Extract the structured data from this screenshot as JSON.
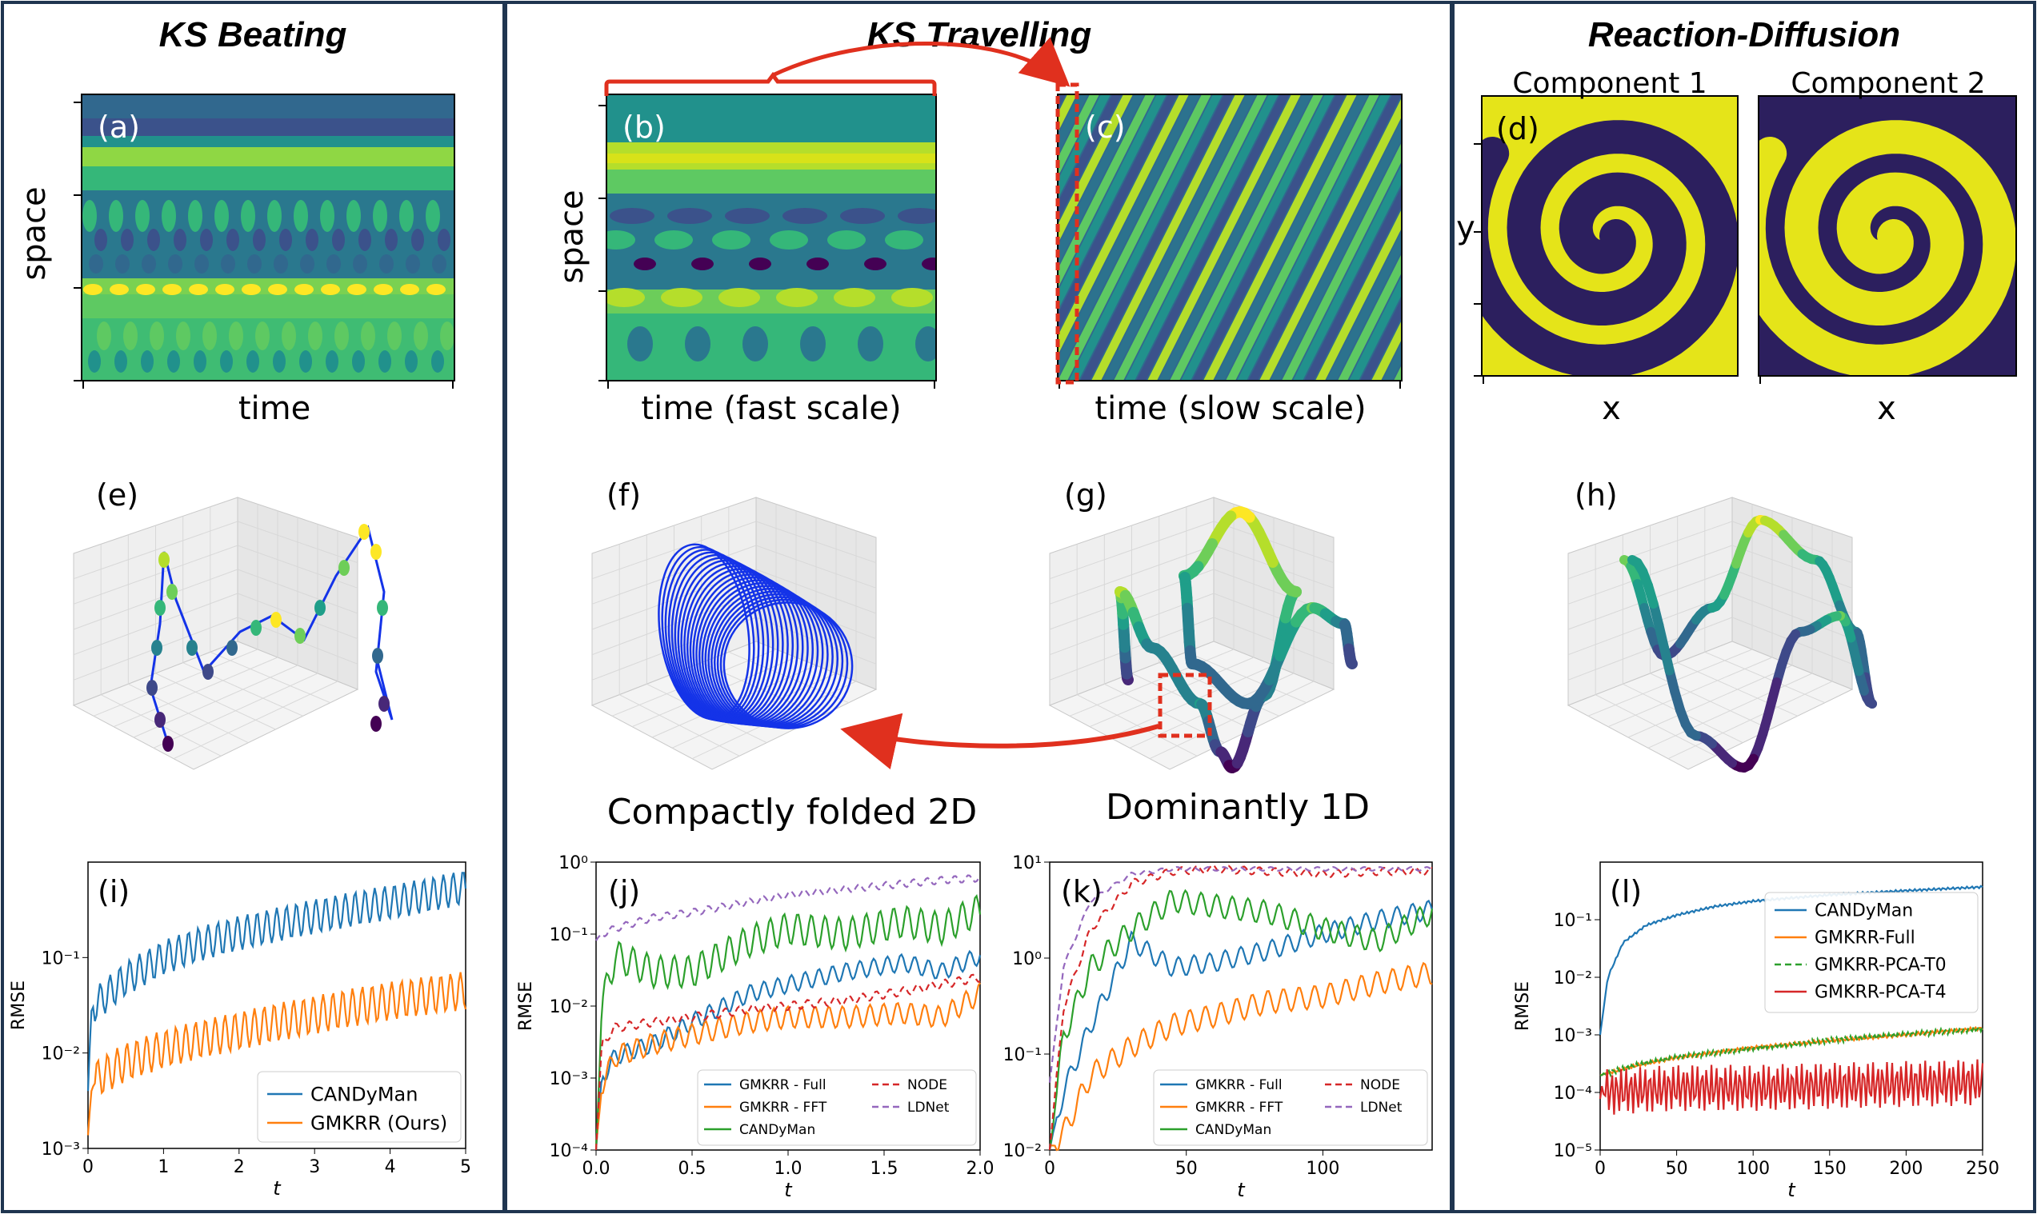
{
  "columns": {
    "col1": {
      "title": "KS Beating"
    },
    "col2": {
      "title": "KS Travelling"
    },
    "col3": {
      "title": "Reaction-Diffusion"
    }
  },
  "panels": {
    "a": {
      "tag": "(a)",
      "ylabel": "space",
      "xlabel": "time"
    },
    "b": {
      "tag": "(b)",
      "ylabel": "space",
      "xlabel": "time (fast scale)"
    },
    "c": {
      "tag": "(c)",
      "xlabel": "time (slow scale)"
    },
    "d": {
      "tag": "(d)",
      "ylabel": "y",
      "title1": "Component 1",
      "title2": "Component 2",
      "xlabel1": "x",
      "xlabel2": "x"
    },
    "e": {
      "tag": "(e)"
    },
    "f": {
      "tag": "(f)",
      "caption": "Compactly folded 2D"
    },
    "g": {
      "tag": "(g)",
      "caption": "Dominantly 1D"
    },
    "h": {
      "tag": "(h)"
    },
    "i": {
      "tag": "(i)"
    },
    "j": {
      "tag": "(j)"
    },
    "k": {
      "tag": "(k)"
    },
    "l": {
      "tag": "(l)"
    }
  },
  "colors": {
    "blue": "#1f77b4",
    "orange": "#ff7f0e",
    "green": "#2ca02c",
    "red": "#d62728",
    "purple": "#9467bd",
    "frame": "#1f3550",
    "annot": "#e0301e",
    "loop": "#1433e8"
  },
  "chart_data": [
    {
      "panel": "i",
      "type": "line",
      "scale": "log",
      "xlabel": "t",
      "ylabel": "RMSE",
      "xlim": [
        0,
        5
      ],
      "ylim": [
        0.001,
        1
      ],
      "xticks": [
        "0",
        "1",
        "2",
        "3",
        "4",
        "5"
      ],
      "yticks": [
        "10⁻³",
        "10⁻²",
        "10⁻¹"
      ],
      "legend": "lower-right",
      "series": [
        {
          "name": "CANDyMan",
          "x": [
            0,
            0.05,
            0.5,
            1,
            1.5,
            2,
            2.5,
            3,
            3.5,
            4,
            4.5,
            5
          ],
          "y": [
            0.004,
            0.03,
            0.06,
            0.1,
            0.14,
            0.18,
            0.22,
            0.27,
            0.32,
            0.38,
            0.45,
            0.55
          ]
        },
        {
          "name": "GMKRR (Ours)",
          "x": [
            0,
            0.05,
            0.5,
            1,
            1.5,
            2,
            2.5,
            3,
            3.5,
            4,
            4.5,
            5
          ],
          "y": [
            0.0012,
            0.005,
            0.008,
            0.011,
            0.014,
            0.017,
            0.021,
            0.025,
            0.03,
            0.035,
            0.04,
            0.045
          ]
        }
      ]
    },
    {
      "panel": "j",
      "type": "line",
      "scale": "log",
      "xlabel": "t",
      "ylabel": "RMSE",
      "xlim": [
        0,
        2
      ],
      "ylim": [
        0.0001,
        1
      ],
      "xticks": [
        "0.0",
        "0.5",
        "1.0",
        "1.5",
        "2.0"
      ],
      "yticks": [
        "10⁻⁴",
        "10⁻³",
        "10⁻²",
        "10⁻¹",
        "10⁰"
      ],
      "legend": "lower-right",
      "series": [
        {
          "name": "GMKRR - Full",
          "x": [
            0,
            0.03,
            0.1,
            0.3,
            0.5,
            0.8,
            1.0,
            1.3,
            1.6,
            1.8,
            2.0
          ],
          "y": [
            0.0001,
            0.001,
            0.002,
            0.003,
            0.006,
            0.015,
            0.02,
            0.03,
            0.04,
            0.03,
            0.05
          ]
        },
        {
          "name": "GMKRR - FFT",
          "x": [
            0,
            0.03,
            0.1,
            0.3,
            0.5,
            0.8,
            1.0,
            1.3,
            1.6,
            1.8,
            2.0
          ],
          "y": [
            0.0001,
            0.0008,
            0.002,
            0.003,
            0.004,
            0.006,
            0.007,
            0.007,
            0.008,
            0.007,
            0.015
          ]
        },
        {
          "name": "CANDyMan",
          "x": [
            0,
            0.03,
            0.1,
            0.3,
            0.5,
            0.8,
            1.0,
            1.3,
            1.6,
            1.8,
            2.0
          ],
          "y": [
            0.0001,
            0.01,
            0.05,
            0.03,
            0.03,
            0.08,
            0.12,
            0.1,
            0.15,
            0.12,
            0.22
          ]
        },
        {
          "name": "NODE",
          "x": [
            0,
            0.03,
            0.1,
            0.3,
            0.5,
            0.8,
            1.0,
            1.3,
            1.6,
            1.8,
            2.0
          ],
          "y": [
            0.0001,
            0.003,
            0.005,
            0.006,
            0.007,
            0.009,
            0.01,
            0.012,
            0.016,
            0.02,
            0.025
          ]
        },
        {
          "name": "LDNet",
          "x": [
            0,
            0.03,
            0.1,
            0.3,
            0.5,
            0.8,
            1.0,
            1.3,
            1.6,
            1.8,
            2.0
          ],
          "y": [
            0.08,
            0.1,
            0.12,
            0.17,
            0.2,
            0.28,
            0.35,
            0.42,
            0.5,
            0.56,
            0.6
          ]
        }
      ]
    },
    {
      "panel": "k",
      "type": "line",
      "scale": "log",
      "xlabel": "t",
      "ylabel": "",
      "xlim": [
        0,
        140
      ],
      "ylim": [
        0.01,
        10
      ],
      "xticks": [
        "0",
        "50",
        "100"
      ],
      "yticks": [
        "10⁻²",
        "10⁻¹",
        "10⁰",
        "10¹"
      ],
      "legend": "lower-right",
      "series": [
        {
          "name": "GMKRR - Full",
          "x": [
            0,
            5,
            15,
            30,
            45,
            60,
            80,
            100,
            120,
            140
          ],
          "y": [
            0.01,
            0.04,
            0.2,
            1.5,
            0.8,
            0.9,
            1.2,
            1.8,
            2.5,
            3.2
          ]
        },
        {
          "name": "GMKRR - FFT",
          "x": [
            0,
            5,
            15,
            30,
            45,
            60,
            80,
            100,
            120,
            140
          ],
          "y": [
            0.01,
            0.015,
            0.06,
            0.12,
            0.2,
            0.25,
            0.35,
            0.4,
            0.55,
            0.7
          ]
        },
        {
          "name": "CANDyMan",
          "x": [
            0,
            5,
            15,
            30,
            45,
            60,
            80,
            100,
            120,
            140
          ],
          "y": [
            0.01,
            0.15,
            0.8,
            2.0,
            4.0,
            3.5,
            3.0,
            2.0,
            1.5,
            3.0
          ]
        },
        {
          "name": "NODE",
          "x": [
            0,
            5,
            15,
            30,
            45,
            60,
            80,
            100,
            120,
            140
          ],
          "y": [
            0.01,
            0.3,
            2.0,
            6.0,
            8.0,
            8.5,
            8.0,
            7.5,
            8.0,
            8.0
          ]
        },
        {
          "name": "LDNet",
          "x": [
            0,
            5,
            15,
            30,
            45,
            60,
            80,
            100,
            120,
            140
          ],
          "y": [
            0.05,
            0.8,
            4.0,
            7.5,
            8.5,
            8.5,
            8.5,
            8.5,
            8.5,
            8.5
          ]
        }
      ]
    },
    {
      "panel": "l",
      "type": "line",
      "scale": "log",
      "xlabel": "t",
      "ylabel": "RMSE",
      "xlim": [
        0,
        250
      ],
      "ylim": [
        1e-05,
        1
      ],
      "xticks": [
        "0",
        "50",
        "100",
        "150",
        "200",
        "250"
      ],
      "yticks": [
        "10⁻⁵",
        "10⁻⁴",
        "10⁻³",
        "10⁻²",
        "10⁻¹"
      ],
      "legend": "upper-right",
      "series": [
        {
          "name": "CANDyMan",
          "x": [
            0,
            5,
            15,
            30,
            50,
            75,
            100,
            150,
            200,
            250
          ],
          "y": [
            0.001,
            0.01,
            0.04,
            0.08,
            0.12,
            0.17,
            0.21,
            0.27,
            0.32,
            0.37
          ]
        },
        {
          "name": "GMKRR-Full",
          "x": [
            0,
            25,
            50,
            100,
            150,
            200,
            250
          ],
          "y": [
            0.0002,
            0.0003,
            0.0004,
            0.0006,
            0.0008,
            0.001,
            0.0013
          ]
        },
        {
          "name": "GMKRR-PCA-T0",
          "x": [
            0,
            25,
            50,
            100,
            150,
            200,
            250
          ],
          "y": [
            0.0002,
            0.0003,
            0.0004,
            0.0006,
            0.0008,
            0.001,
            0.0013
          ]
        },
        {
          "name": "GMKRR-PCA-T4",
          "x": [
            0,
            50,
            100,
            150,
            200,
            250
          ],
          "y": [
            0.0001,
            0.00012,
            0.00012,
            0.00013,
            0.00014,
            0.00015
          ]
        }
      ]
    }
  ]
}
